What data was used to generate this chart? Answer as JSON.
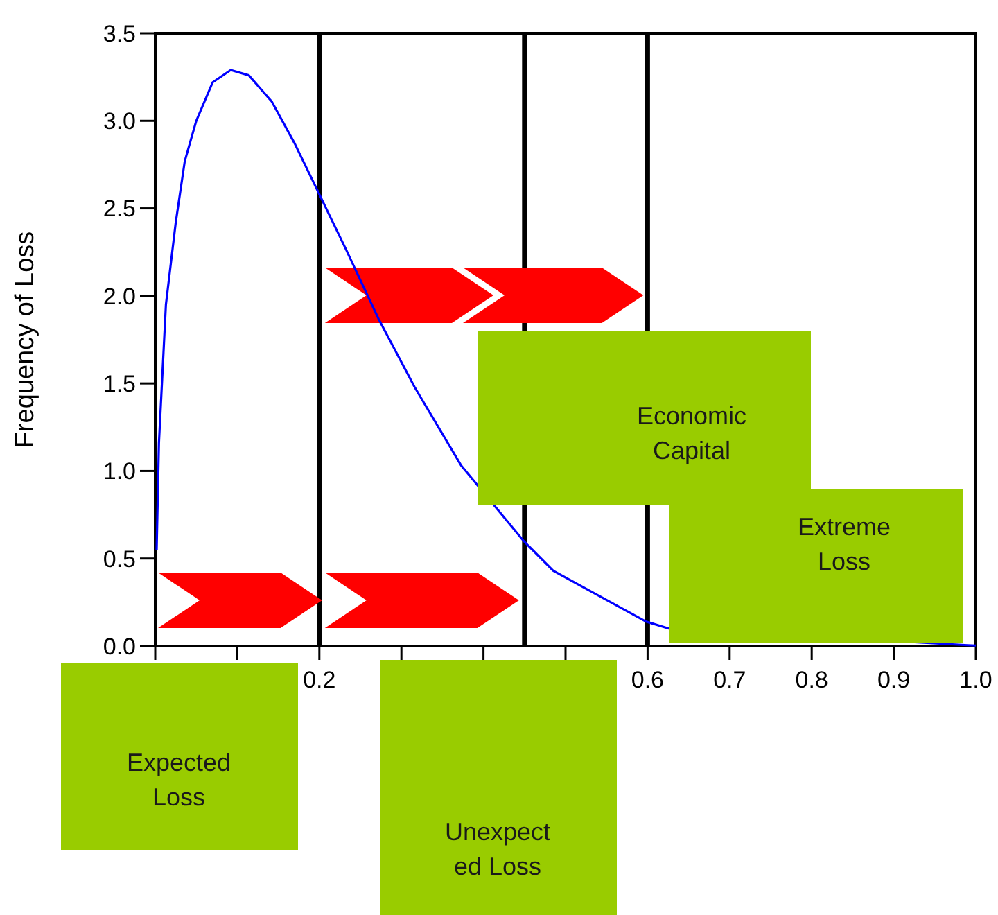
{
  "chart_data": {
    "type": "line",
    "ylabel": "Frequency of Loss",
    "xlim": [
      0,
      1.0
    ],
    "ylim": [
      0,
      3.5
    ],
    "xticks": [
      {
        "value": 0,
        "label": null
      },
      {
        "value": 0.1,
        "label": null
      },
      0.2,
      {
        "value": 0.3,
        "label": null
      },
      {
        "value": 0.4,
        "label": null
      },
      {
        "value": 0.5,
        "label": null
      },
      0.6,
      0.7,
      0.8,
      0.9,
      {
        "value": 1,
        "label": "1.0"
      }
    ],
    "yticks": [
      {
        "value": 0,
        "label": "0.0"
      },
      0.5,
      {
        "value": 1,
        "label": "1.0"
      },
      1.5,
      {
        "value": 2,
        "label": "2.0"
      },
      2.5,
      {
        "value": 3,
        "label": "3.0"
      },
      3.5
    ],
    "grid": false,
    "marker": "none",
    "line_style": "solid",
    "series": [
      {
        "color": "#0000ff",
        "x": [
          0.0017,
          0.0045,
          0.013,
          0.025,
          0.036,
          0.05,
          0.07,
          0.092,
          0.114,
          0.142,
          0.17,
          0.2,
          0.232,
          0.272,
          0.316,
          0.373,
          0.449,
          0.485,
          0.598,
          0.626,
          0.99,
          1.0
        ],
        "values": [
          0.55,
          1.16,
          1.95,
          2.42,
          2.77,
          3.0,
          3.22,
          3.29,
          3.26,
          3.11,
          2.87,
          2.58,
          2.27,
          1.87,
          1.48,
          1.03,
          0.6,
          0.43,
          0.14,
          0.1,
          0.005,
          0.003
        ]
      }
    ],
    "ref_lines": [
      {
        "axis": "x",
        "value": 0.2,
        "color": "#000000"
      },
      {
        "axis": "x",
        "value": 0.45,
        "color": "#000000"
      },
      {
        "axis": "x",
        "value": 0.6,
        "color": "#000000"
      }
    ],
    "annotations": [
      "Expected\nLoss",
      "Unexpect\ned Loss",
      "Economic\nCapital",
      "Extreme\nLoss"
    ]
  }
}
